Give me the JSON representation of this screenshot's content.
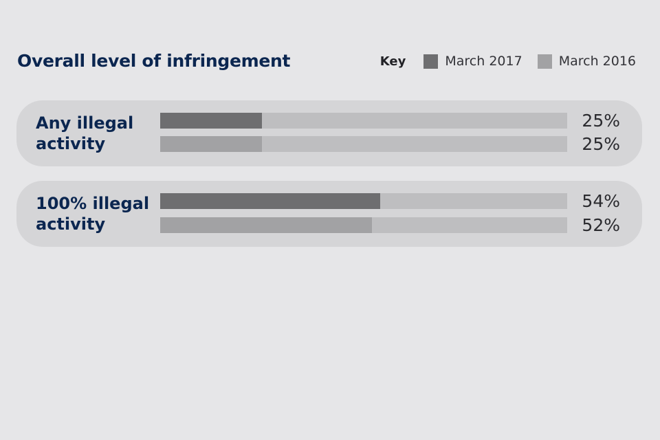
{
  "chart_data": {
    "type": "bar",
    "orientation": "horizontal",
    "title": "Overall level of infringement",
    "legend_title": "Key",
    "legend_position": "top-right",
    "categories": [
      "Any illegal activity",
      "100% illegal activity"
    ],
    "series": [
      {
        "name": "March 2017",
        "values": [
          25,
          54
        ],
        "labels": [
          "25%",
          "54%"
        ],
        "color": "#6e6e70"
      },
      {
        "name": "March 2016",
        "values": [
          25,
          52
        ],
        "labels": [
          "25%",
          "52%"
        ],
        "color": "#a2a2a4"
      }
    ],
    "xlim": [
      0,
      100
    ],
    "unit": "%",
    "track_color": "#bebec0",
    "grid": false
  }
}
